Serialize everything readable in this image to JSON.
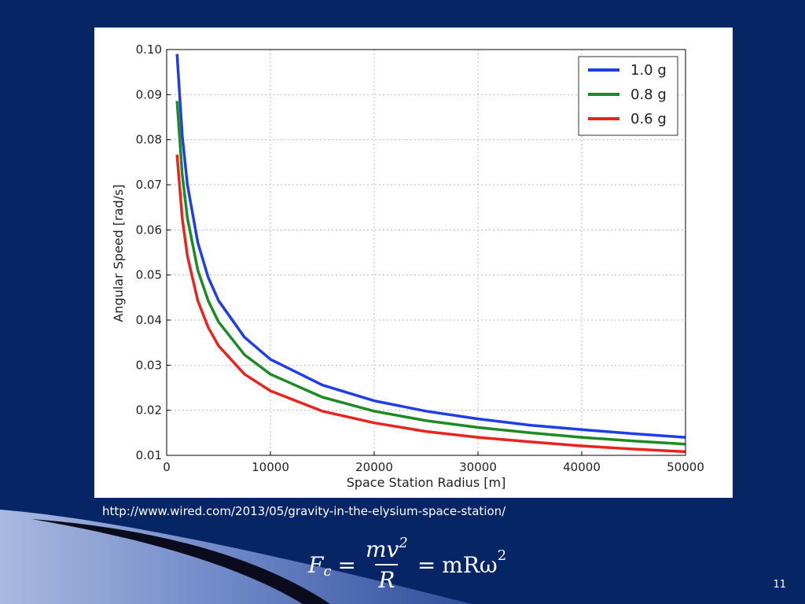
{
  "colors": {
    "background": "#062564",
    "panel": "#ffffff",
    "grid": "#bbbbbb",
    "series_1": "#1f3ee8",
    "series_2": "#1e8a26",
    "series_3": "#e8241e"
  },
  "source_url": "http://www.wired.com/2013/05/gravity-in-the-elysium-space-station/",
  "formula": {
    "lhs": "F",
    "lhs_sub": "c",
    "eq1": "=",
    "num": "mv",
    "num_sup": "2",
    "den": "R",
    "eq2": "=",
    "rhs": "mRω",
    "rhs_sup": "2"
  },
  "page_number": "11",
  "chart_data": {
    "type": "line",
    "xlabel": "Space Station Radius [m]",
    "ylabel": "Angular Speed [rad/s]",
    "xlim": [
      0,
      50000
    ],
    "ylim": [
      0.01,
      0.1
    ],
    "xticks": [
      0,
      10000,
      20000,
      30000,
      40000,
      50000
    ],
    "xtick_labels": [
      "0",
      "10000",
      "20000",
      "30000",
      "40000",
      "50000"
    ],
    "yticks": [
      0.01,
      0.02,
      0.03,
      0.04,
      0.05,
      0.06,
      0.07,
      0.08,
      0.09,
      0.1
    ],
    "ytick_labels": [
      "0.01",
      "0.02",
      "0.03",
      "0.04",
      "0.05",
      "0.06",
      "0.07",
      "0.08",
      "0.09",
      "0.10"
    ],
    "grid": true,
    "legend_position": "top-right",
    "x": [
      1000,
      1500,
      2000,
      3000,
      4000,
      5000,
      7500,
      10000,
      15000,
      20000,
      25000,
      30000,
      35000,
      40000,
      45000,
      50000
    ],
    "series": [
      {
        "name": "1.0 g",
        "color": "#1f3ee8",
        "values": [
          0.099,
          0.0809,
          0.07,
          0.0572,
          0.0495,
          0.0443,
          0.0362,
          0.0313,
          0.0256,
          0.0221,
          0.0198,
          0.0181,
          0.0167,
          0.0157,
          0.0148,
          0.014
        ]
      },
      {
        "name": "0.8 g",
        "color": "#1e8a26",
        "values": [
          0.0886,
          0.0723,
          0.0626,
          0.0511,
          0.0443,
          0.0396,
          0.0323,
          0.028,
          0.0229,
          0.0198,
          0.0177,
          0.0162,
          0.015,
          0.014,
          0.0132,
          0.0125
        ]
      },
      {
        "name": "0.6 g",
        "color": "#e8241e",
        "values": [
          0.0767,
          0.0626,
          0.0542,
          0.0443,
          0.0384,
          0.0343,
          0.028,
          0.0243,
          0.0198,
          0.0172,
          0.0153,
          0.014,
          0.013,
          0.0121,
          0.0114,
          0.0108
        ]
      }
    ]
  }
}
